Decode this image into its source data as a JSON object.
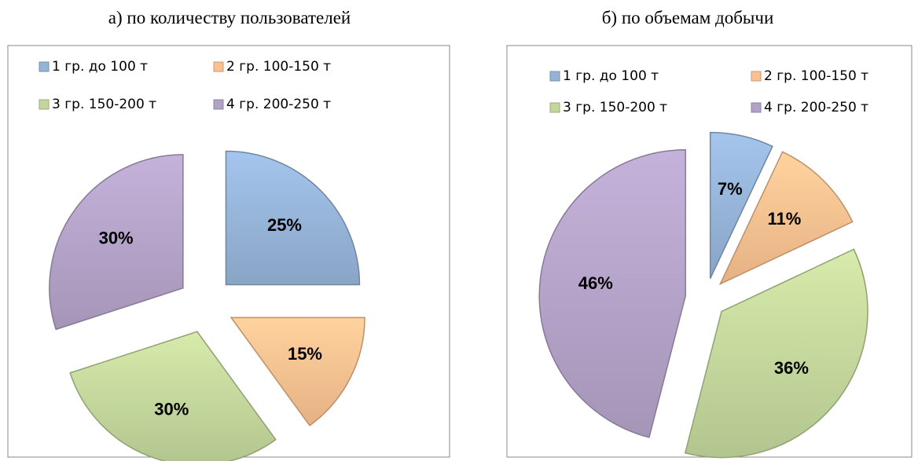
{
  "chart_data": [
    {
      "type": "pie",
      "title": "а) по количеству пользователей",
      "categories": [
        "1 гр. до 100 т",
        "2 гр. 100-150 т",
        "3 гр. 150-200 т",
        "4 гр. 200-250 т"
      ],
      "values": [
        25,
        15,
        30,
        30
      ],
      "value_labels": [
        "25%",
        "15%",
        "30%",
        "30%"
      ],
      "colors": [
        "#95b3d7",
        "#fac090",
        "#c3d69b",
        "#b3a2c7"
      ]
    },
    {
      "type": "pie",
      "title": "б) по объемам добычи",
      "categories": [
        "1 гр. до 100 т",
        "2 гр. 100-150 т",
        "3 гр. 150-200 т",
        "4 гр. 200-250 т"
      ],
      "values": [
        7,
        11,
        36,
        46
      ],
      "value_labels": [
        "7%",
        "11%",
        "36%",
        "46%"
      ],
      "colors": [
        "#95b3d7",
        "#fac090",
        "#c3d69b",
        "#b3a2c7"
      ]
    }
  ]
}
